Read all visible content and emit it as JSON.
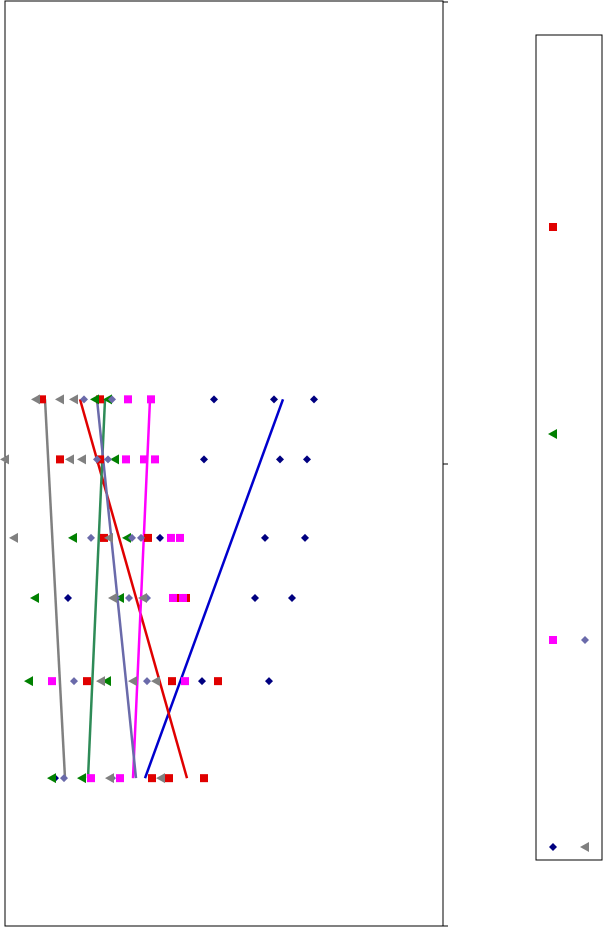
{
  "chart_data": {
    "type": "scatter",
    "xlim": [
      0,
      435
    ],
    "ylim": [
      0,
      2
    ],
    "yticks": [
      0,
      1,
      2
    ],
    "series": [
      {
        "color": "#000080",
        "marker": "diamond",
        "x": [
          209,
          269,
          309,
          199,
          275,
          302,
          155,
          260,
          300,
          63,
          250,
          287,
          197,
          264,
          50
        ],
        "y": [
          1.14,
          1.14,
          1.14,
          1.01,
          1.01,
          1.01,
          0.84,
          0.84,
          0.84,
          0.71,
          0.71,
          0.71,
          0.53,
          0.53,
          0.32
        ],
        "line_color": "#0000cd",
        "line": {
          "x": [
            278,
            140
          ],
          "y": [
            1.14,
            0.32
          ]
        }
      },
      {
        "color": "#e00000",
        "marker": "square",
        "x": [
          37,
          95,
          55,
          95,
          99,
          143,
          171,
          181,
          82,
          167,
          213,
          147,
          164,
          199
        ],
        "y": [
          1.14,
          1.14,
          1.01,
          1.01,
          0.84,
          0.84,
          0.71,
          0.71,
          0.53,
          0.53,
          0.53,
          0.32,
          0.32,
          0.32
        ],
        "line_color": "#e00000",
        "line": {
          "x": [
            75,
            182
          ],
          "y": [
            1.14,
            0.32
          ]
        }
      },
      {
        "color": "#008000",
        "marker": "triangle",
        "x": [
          90,
          103,
          110,
          68,
          122,
          30,
          115,
          24,
          102,
          47,
          77
        ],
        "y": [
          1.14,
          1.14,
          1.01,
          0.84,
          0.84,
          0.71,
          0.71,
          0.53,
          0.53,
          0.32,
          0.32
        ],
        "line_color": "#2e8b57",
        "line": {
          "x": [
            100,
            83
          ],
          "y": [
            1.14,
            0.32
          ]
        }
      },
      {
        "color": "#ff00ff",
        "marker": "square",
        "x": [
          123,
          146,
          121,
          139,
          150,
          166,
          175,
          168,
          178,
          47,
          180,
          86,
          115
        ],
        "y": [
          1.14,
          1.14,
          1.01,
          1.01,
          1.01,
          0.84,
          0.84,
          0.71,
          0.71,
          0.53,
          0.53,
          0.32,
          0.32
        ],
        "line_color": "#ff00ff",
        "line": {
          "x": [
            145,
            128
          ],
          "y": [
            1.14,
            0.32
          ]
        }
      },
      {
        "color": "#6a6aaa",
        "marker": "diamond",
        "x": [
          79,
          107,
          92,
          103,
          86,
          127,
          136,
          111,
          124,
          142,
          69,
          142,
          59,
          107
        ],
        "y": [
          1.14,
          1.14,
          1.01,
          1.01,
          0.84,
          0.84,
          0.84,
          0.71,
          0.71,
          0.71,
          0.53,
          0.53,
          0.32,
          0.32
        ],
        "line_color": "#6a6aaa",
        "line": {
          "x": [
            92,
            131
          ],
          "y": [
            1.14,
            0.32
          ]
        }
      },
      {
        "color": "#808080",
        "marker": "triangle",
        "x": [
          31,
          55,
          69,
          0,
          65,
          77,
          9,
          104,
          108,
          138,
          96,
          128,
          151,
          105,
          156
        ],
        "y": [
          1.14,
          1.14,
          1.14,
          1.01,
          1.01,
          1.01,
          0.84,
          0.84,
          0.71,
          0.71,
          0.53,
          0.53,
          0.53,
          0.32,
          0.32
        ],
        "line_color": "#808080",
        "line": {
          "x": [
            40,
            60
          ],
          "y": [
            1.14,
            0.32
          ]
        }
      }
    ]
  }
}
